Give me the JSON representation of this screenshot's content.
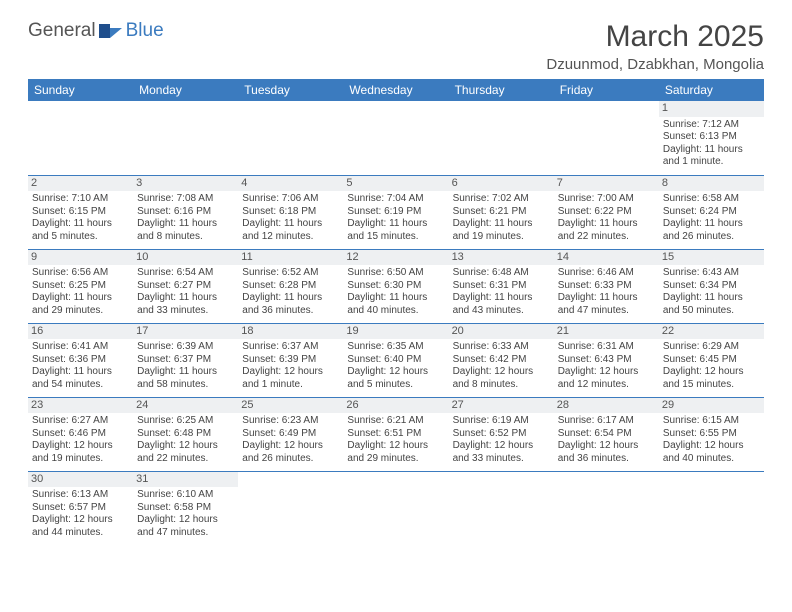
{
  "logo": {
    "general": "General",
    "blue": "Blue"
  },
  "title": "March 2025",
  "location": "Dzuunmod, Dzabkhan, Mongolia",
  "colors": {
    "header_bg": "#3b7bbf",
    "header_text": "#ffffff",
    "daynum_bg": "#eef0f2",
    "text": "#444444",
    "row_border": "#3b7bbf"
  },
  "day_headers": [
    "Sunday",
    "Monday",
    "Tuesday",
    "Wednesday",
    "Thursday",
    "Friday",
    "Saturday"
  ],
  "weeks": [
    [
      {
        "n": "",
        "sr": "",
        "ss": "",
        "dl": ""
      },
      {
        "n": "",
        "sr": "",
        "ss": "",
        "dl": ""
      },
      {
        "n": "",
        "sr": "",
        "ss": "",
        "dl": ""
      },
      {
        "n": "",
        "sr": "",
        "ss": "",
        "dl": ""
      },
      {
        "n": "",
        "sr": "",
        "ss": "",
        "dl": ""
      },
      {
        "n": "",
        "sr": "",
        "ss": "",
        "dl": ""
      },
      {
        "n": "1",
        "sr": "Sunrise: 7:12 AM",
        "ss": "Sunset: 6:13 PM",
        "dl": "Daylight: 11 hours and 1 minute."
      }
    ],
    [
      {
        "n": "2",
        "sr": "Sunrise: 7:10 AM",
        "ss": "Sunset: 6:15 PM",
        "dl": "Daylight: 11 hours and 5 minutes."
      },
      {
        "n": "3",
        "sr": "Sunrise: 7:08 AM",
        "ss": "Sunset: 6:16 PM",
        "dl": "Daylight: 11 hours and 8 minutes."
      },
      {
        "n": "4",
        "sr": "Sunrise: 7:06 AM",
        "ss": "Sunset: 6:18 PM",
        "dl": "Daylight: 11 hours and 12 minutes."
      },
      {
        "n": "5",
        "sr": "Sunrise: 7:04 AM",
        "ss": "Sunset: 6:19 PM",
        "dl": "Daylight: 11 hours and 15 minutes."
      },
      {
        "n": "6",
        "sr": "Sunrise: 7:02 AM",
        "ss": "Sunset: 6:21 PM",
        "dl": "Daylight: 11 hours and 19 minutes."
      },
      {
        "n": "7",
        "sr": "Sunrise: 7:00 AM",
        "ss": "Sunset: 6:22 PM",
        "dl": "Daylight: 11 hours and 22 minutes."
      },
      {
        "n": "8",
        "sr": "Sunrise: 6:58 AM",
        "ss": "Sunset: 6:24 PM",
        "dl": "Daylight: 11 hours and 26 minutes."
      }
    ],
    [
      {
        "n": "9",
        "sr": "Sunrise: 6:56 AM",
        "ss": "Sunset: 6:25 PM",
        "dl": "Daylight: 11 hours and 29 minutes."
      },
      {
        "n": "10",
        "sr": "Sunrise: 6:54 AM",
        "ss": "Sunset: 6:27 PM",
        "dl": "Daylight: 11 hours and 33 minutes."
      },
      {
        "n": "11",
        "sr": "Sunrise: 6:52 AM",
        "ss": "Sunset: 6:28 PM",
        "dl": "Daylight: 11 hours and 36 minutes."
      },
      {
        "n": "12",
        "sr": "Sunrise: 6:50 AM",
        "ss": "Sunset: 6:30 PM",
        "dl": "Daylight: 11 hours and 40 minutes."
      },
      {
        "n": "13",
        "sr": "Sunrise: 6:48 AM",
        "ss": "Sunset: 6:31 PM",
        "dl": "Daylight: 11 hours and 43 minutes."
      },
      {
        "n": "14",
        "sr": "Sunrise: 6:46 AM",
        "ss": "Sunset: 6:33 PM",
        "dl": "Daylight: 11 hours and 47 minutes."
      },
      {
        "n": "15",
        "sr": "Sunrise: 6:43 AM",
        "ss": "Sunset: 6:34 PM",
        "dl": "Daylight: 11 hours and 50 minutes."
      }
    ],
    [
      {
        "n": "16",
        "sr": "Sunrise: 6:41 AM",
        "ss": "Sunset: 6:36 PM",
        "dl": "Daylight: 11 hours and 54 minutes."
      },
      {
        "n": "17",
        "sr": "Sunrise: 6:39 AM",
        "ss": "Sunset: 6:37 PM",
        "dl": "Daylight: 11 hours and 58 minutes."
      },
      {
        "n": "18",
        "sr": "Sunrise: 6:37 AM",
        "ss": "Sunset: 6:39 PM",
        "dl": "Daylight: 12 hours and 1 minute."
      },
      {
        "n": "19",
        "sr": "Sunrise: 6:35 AM",
        "ss": "Sunset: 6:40 PM",
        "dl": "Daylight: 12 hours and 5 minutes."
      },
      {
        "n": "20",
        "sr": "Sunrise: 6:33 AM",
        "ss": "Sunset: 6:42 PM",
        "dl": "Daylight: 12 hours and 8 minutes."
      },
      {
        "n": "21",
        "sr": "Sunrise: 6:31 AM",
        "ss": "Sunset: 6:43 PM",
        "dl": "Daylight: 12 hours and 12 minutes."
      },
      {
        "n": "22",
        "sr": "Sunrise: 6:29 AM",
        "ss": "Sunset: 6:45 PM",
        "dl": "Daylight: 12 hours and 15 minutes."
      }
    ],
    [
      {
        "n": "23",
        "sr": "Sunrise: 6:27 AM",
        "ss": "Sunset: 6:46 PM",
        "dl": "Daylight: 12 hours and 19 minutes."
      },
      {
        "n": "24",
        "sr": "Sunrise: 6:25 AM",
        "ss": "Sunset: 6:48 PM",
        "dl": "Daylight: 12 hours and 22 minutes."
      },
      {
        "n": "25",
        "sr": "Sunrise: 6:23 AM",
        "ss": "Sunset: 6:49 PM",
        "dl": "Daylight: 12 hours and 26 minutes."
      },
      {
        "n": "26",
        "sr": "Sunrise: 6:21 AM",
        "ss": "Sunset: 6:51 PM",
        "dl": "Daylight: 12 hours and 29 minutes."
      },
      {
        "n": "27",
        "sr": "Sunrise: 6:19 AM",
        "ss": "Sunset: 6:52 PM",
        "dl": "Daylight: 12 hours and 33 minutes."
      },
      {
        "n": "28",
        "sr": "Sunrise: 6:17 AM",
        "ss": "Sunset: 6:54 PM",
        "dl": "Daylight: 12 hours and 36 minutes."
      },
      {
        "n": "29",
        "sr": "Sunrise: 6:15 AM",
        "ss": "Sunset: 6:55 PM",
        "dl": "Daylight: 12 hours and 40 minutes."
      }
    ],
    [
      {
        "n": "30",
        "sr": "Sunrise: 6:13 AM",
        "ss": "Sunset: 6:57 PM",
        "dl": "Daylight: 12 hours and 44 minutes."
      },
      {
        "n": "31",
        "sr": "Sunrise: 6:10 AM",
        "ss": "Sunset: 6:58 PM",
        "dl": "Daylight: 12 hours and 47 minutes."
      },
      {
        "n": "",
        "sr": "",
        "ss": "",
        "dl": ""
      },
      {
        "n": "",
        "sr": "",
        "ss": "",
        "dl": ""
      },
      {
        "n": "",
        "sr": "",
        "ss": "",
        "dl": ""
      },
      {
        "n": "",
        "sr": "",
        "ss": "",
        "dl": ""
      },
      {
        "n": "",
        "sr": "",
        "ss": "",
        "dl": ""
      }
    ]
  ]
}
